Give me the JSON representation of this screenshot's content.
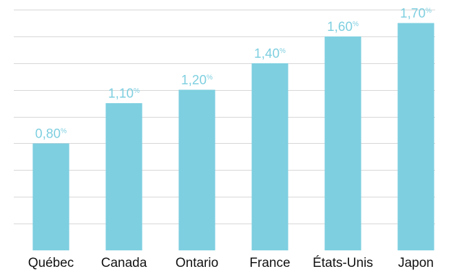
{
  "chart_data": {
    "type": "bar",
    "title": "",
    "xlabel": "",
    "ylabel": "",
    "categories": [
      "Québec",
      "Canada",
      "Ontario",
      "France",
      "États-Unis",
      "Japon"
    ],
    "values": [
      0.8,
      1.1,
      1.2,
      1.4,
      1.6,
      1.7
    ],
    "value_labels": [
      "0,80",
      "1,10",
      "1,20",
      "1,40",
      "1,60",
      "1,70"
    ],
    "value_unit": "%",
    "ylim": [
      0,
      1.8
    ],
    "grid_step": 0.2,
    "grid": true,
    "legend": "none",
    "colors": {
      "bar": "#7ecfe0",
      "value_label": "#7ecfe0",
      "gridline": "#d6d6d6",
      "category_label": "#111111"
    }
  }
}
